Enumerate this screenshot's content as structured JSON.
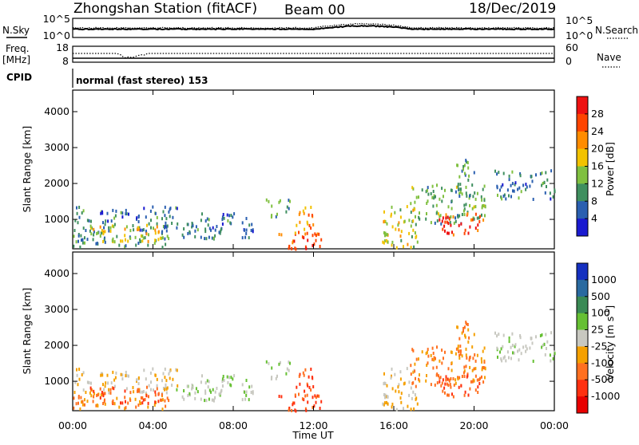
{
  "header": {
    "station": "Zhongshan Station (fitACF)",
    "beam": "Beam 00",
    "date": "18/Dec/2019"
  },
  "panel_labels": {
    "nsky": "N.Sky",
    "nsearch": "N.Search",
    "freq": "Freq.",
    "freq_unit": "[MHz]",
    "nave": "Nave",
    "cpid": "CPID",
    "cpid_value": "normal (fast stereo) 153"
  },
  "noise_axis": {
    "left_top": "10^5",
    "left_bottom": "10^0",
    "right_top": "10^5",
    "right_bottom": "10^0"
  },
  "freq_axis": {
    "left_top": "18",
    "left_bottom": "8",
    "right_top": "60",
    "right_bottom": "0"
  },
  "range_axis": {
    "label": "Slant Range [km]",
    "ticks": [
      "4000",
      "3000",
      "2000",
      "1000"
    ]
  },
  "time_axis": {
    "label": "Time UT",
    "ticks": [
      "00:00",
      "04:00",
      "08:00",
      "12:00",
      "16:00",
      "20:00",
      "00:00"
    ]
  },
  "power_scale": {
    "label": "Power [dB]",
    "ticks": [
      "28",
      "24",
      "20",
      "16",
      "12",
      "8",
      "4"
    ],
    "colors": [
      "#ee1111",
      "#ff4400",
      "#ff8c00",
      "#f2c200",
      "#80c040",
      "#3f8f5f",
      "#2a5fb0",
      "#1a1ad0"
    ]
  },
  "velocity_scale": {
    "label": "Velocity [m s",
    "label_sup": "-1",
    "label_end": "]",
    "ticks": [
      "1000",
      "500",
      "100",
      "25",
      "-25",
      "-100",
      "-500",
      "-1000"
    ],
    "colors": [
      "#1530c0",
      "#2a6aa0",
      "#3a8a55",
      "#66c033",
      "#c8c8c0",
      "#f5a000",
      "#ff7020",
      "#ff3010",
      "#e80000"
    ]
  },
  "chart_data": {
    "type": "heatmap",
    "xlabel": "Time UT",
    "ylabel": "Slant Range [km]",
    "xlim": [
      0,
      24
    ],
    "ylim": [
      180,
      4600
    ],
    "echo_regions": [
      {
        "t": [
          0.0,
          5.2
        ],
        "r": [
          700,
          1400
        ],
        "power": 8,
        "velocity": -25
      },
      {
        "t": [
          0.0,
          4.8
        ],
        "r": [
          250,
          700
        ],
        "power": 10,
        "velocity": -100
      },
      {
        "t": [
          0.6,
          4.4
        ],
        "r": [
          420,
          900
        ],
        "power": 18,
        "velocity": -500
      },
      {
        "t": [
          5.0,
          9.0
        ],
        "r": [
          500,
          1200
        ],
        "power": 8,
        "velocity": 25
      },
      {
        "t": [
          9.6,
          10.8
        ],
        "r": [
          1100,
          1600
        ],
        "power": 12,
        "velocity": 25
      },
      {
        "t": [
          10.2,
          12.4
        ],
        "r": [
          200,
          700
        ],
        "power": 26,
        "velocity": -500
      },
      {
        "t": [
          11.0,
          12.0
        ],
        "r": [
          600,
          1400
        ],
        "power": 22,
        "velocity": -500
      },
      {
        "t": [
          15.4,
          17.2
        ],
        "r": [
          250,
          1400
        ],
        "power": 16,
        "velocity": -25
      },
      {
        "t": [
          16.8,
          20.6
        ],
        "r": [
          900,
          2000
        ],
        "power": 12,
        "velocity": -100
      },
      {
        "t": [
          18.2,
          20.6
        ],
        "r": [
          600,
          1200
        ],
        "power": 28,
        "velocity": -500
      },
      {
        "t": [
          19.0,
          20.0
        ],
        "r": [
          1600,
          2700
        ],
        "power": 10,
        "velocity": -100
      },
      {
        "t": [
          21.0,
          24.0
        ],
        "r": [
          1600,
          2400
        ],
        "power": 8,
        "velocity": 25
      }
    ]
  }
}
